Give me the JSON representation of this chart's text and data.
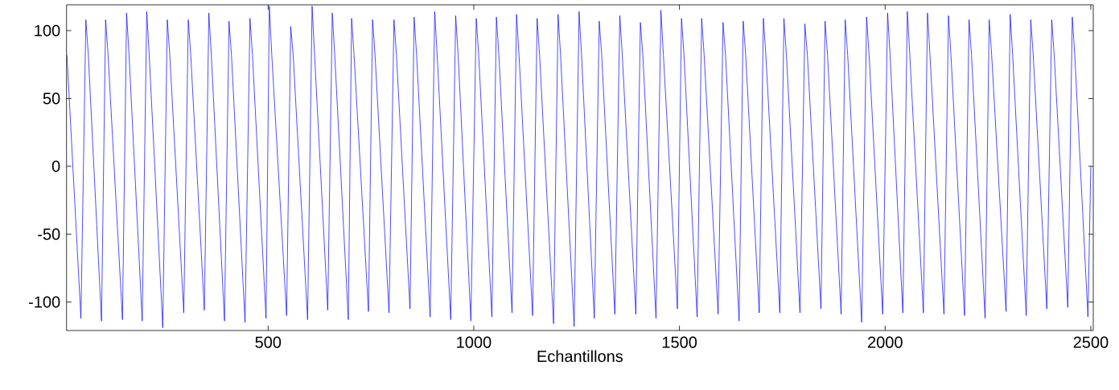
{
  "chart_data": {
    "type": "line",
    "xlabel": "Echantillons",
    "color": "#0000ff",
    "x": [
      11,
      45,
      57,
      63,
      95,
      105,
      111,
      146,
      156,
      162,
      194,
      205,
      211,
      244,
      255,
      261,
      295,
      306,
      312,
      345,
      356,
      362,
      394,
      405,
      411,
      444,
      456,
      462,
      495,
      503,
      509,
      545,
      555,
      561,
      596,
      607,
      613,
      645,
      656,
      662,
      695,
      703,
      709,
      744,
      754,
      760,
      794,
      806,
      812,
      845,
      855,
      861,
      894,
      905,
      911,
      944,
      956,
      962,
      993,
      1006,
      1012,
      1044,
      1055,
      1061,
      1093,
      1104,
      1110,
      1143,
      1154,
      1160,
      1194,
      1205,
      1211,
      1244,
      1256,
      1262,
      1293,
      1305,
      1311,
      1343,
      1355,
      1361,
      1394,
      1405,
      1411,
      1443,
      1455,
      1461,
      1495,
      1505,
      1511,
      1543,
      1554,
      1560,
      1594,
      1606,
      1612,
      1645,
      1655,
      1661,
      1694,
      1704,
      1710,
      1744,
      1754,
      1760,
      1793,
      1805,
      1811,
      1844,
      1854,
      1860,
      1893,
      1903,
      1909,
      1943,
      1955,
      1961,
      1994,
      2006,
      2012,
      2043,
      2054,
      2060,
      2093,
      2103,
      2109,
      2143,
      2154,
      2160,
      2193,
      2204,
      2210,
      2243,
      2253,
      2259,
      2294,
      2304,
      2310,
      2343,
      2354,
      2360,
      2393,
      2405,
      2411,
      2444,
      2455,
      2461,
      2493,
      2500
    ],
    "values": [
      82,
      -112,
      108,
      82,
      -114,
      108,
      82,
      -113,
      113,
      82,
      -114,
      114,
      82,
      -119,
      108,
      82,
      -108,
      108,
      82,
      -106,
      113,
      82,
      -114,
      107,
      82,
      -115,
      109,
      82,
      -112,
      118,
      82,
      -110,
      103,
      82,
      -113,
      118,
      82,
      -106,
      113,
      82,
      -113,
      109,
      82,
      -107,
      108,
      82,
      -108,
      108,
      82,
      -105,
      110,
      82,
      -111,
      114,
      82,
      -113,
      111,
      82,
      -114,
      109,
      82,
      -111,
      110,
      82,
      -108,
      112,
      82,
      -110,
      109,
      82,
      -116,
      112,
      82,
      -118,
      114,
      82,
      -112,
      107,
      82,
      -109,
      111,
      82,
      -109,
      106,
      82,
      -112,
      115,
      82,
      -105,
      109,
      82,
      -111,
      109,
      82,
      -109,
      106,
      82,
      -114,
      107,
      82,
      -108,
      109,
      82,
      -108,
      109,
      82,
      -108,
      105,
      82,
      -105,
      107,
      82,
      -109,
      108,
      82,
      -115,
      110,
      82,
      -109,
      113,
      82,
      -108,
      114,
      82,
      -108,
      113,
      82,
      -109,
      111,
      82,
      -110,
      108,
      82,
      -112,
      108,
      82,
      -107,
      112,
      82,
      -110,
      108,
      82,
      -105,
      108,
      82,
      -104,
      110,
      82,
      -111,
      0
    ],
    "xlim": [
      10,
      2506
    ],
    "ylim": [
      -121,
      119
    ],
    "xticks": [
      500,
      1000,
      1500,
      2000,
      2500
    ],
    "yticks": [
      -100,
      -50,
      0,
      50,
      100
    ]
  }
}
